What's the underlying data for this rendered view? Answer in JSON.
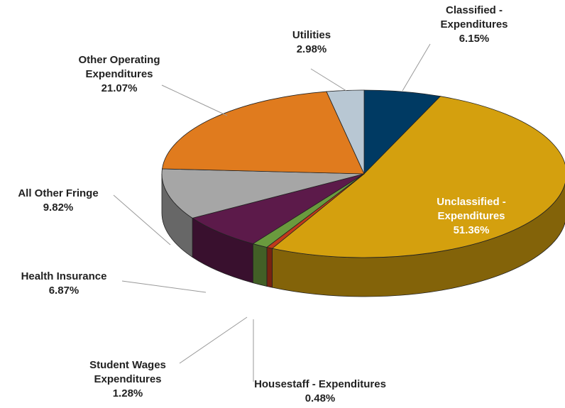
{
  "chart_data": {
    "type": "pie",
    "categories": [
      "Classified - Expenditures",
      "Unclassified - Expenditures",
      "Housestaff - Expenditures",
      "Student Wages Expenditures",
      "Health Insurance",
      "All Other Fringe",
      "Other Operating Expenditures",
      "Utilities"
    ],
    "values": [
      6.15,
      51.36,
      0.48,
      1.28,
      6.87,
      9.82,
      21.07,
      2.98
    ],
    "value_labels": [
      "6.15%",
      "51.36%",
      "0.48%",
      "1.28%",
      "6.87%",
      "9.82%",
      "21.07%",
      "2.98%"
    ],
    "colors": [
      "#003a63",
      "#d4a00e",
      "#c0391b",
      "#6a9a3e",
      "#5c1a4a",
      "#a6a6a6",
      "#e07b1e",
      "#b8c7d3"
    ]
  }
}
